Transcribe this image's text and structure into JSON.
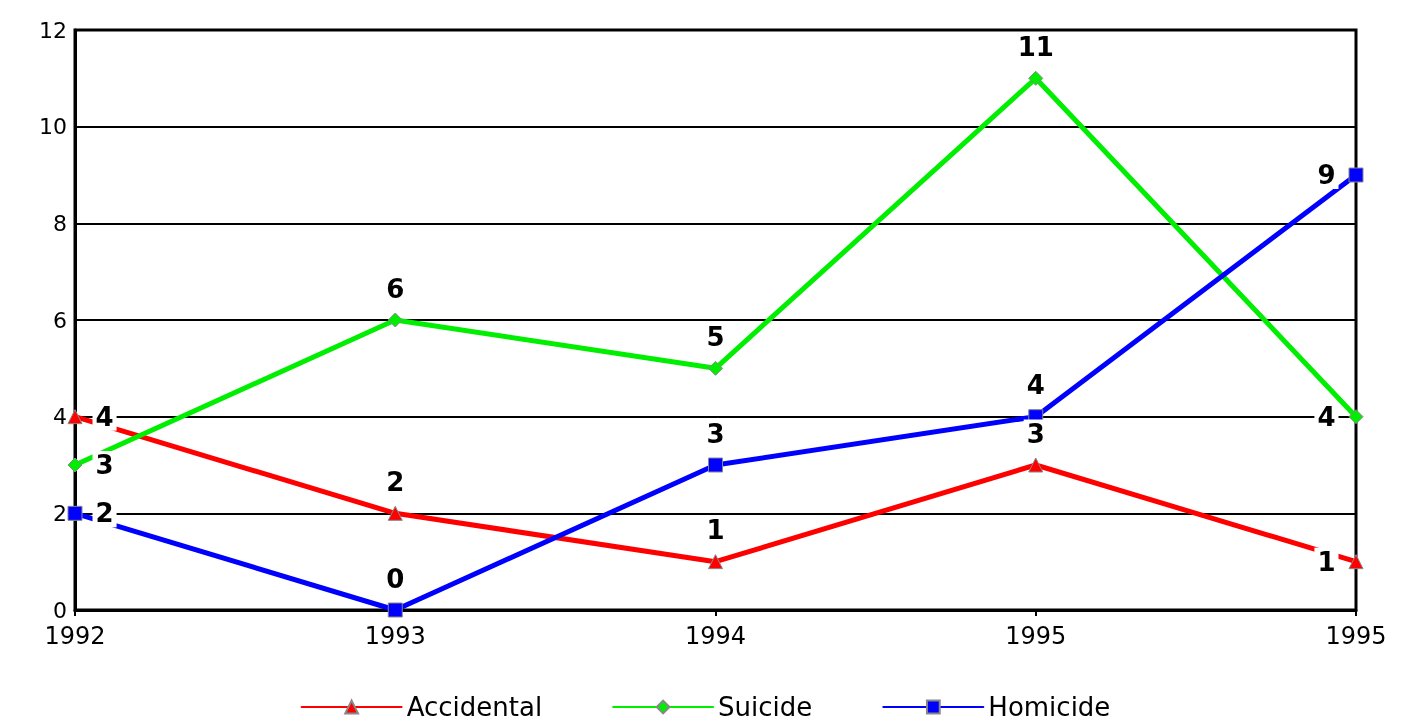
{
  "chart_data": {
    "type": "line",
    "categories": [
      "1992",
      "1993",
      "1994",
      "1995",
      "1995"
    ],
    "series": [
      {
        "name": "Accidental",
        "color": "#ff0000",
        "marker": "triangle",
        "values": [
          4,
          2,
          1,
          3,
          1
        ]
      },
      {
        "name": "Suicide",
        "color": "#00ee00",
        "marker": "diamond",
        "values": [
          3,
          6,
          5,
          11,
          4
        ]
      },
      {
        "name": "Homicide",
        "color": "#0000ff",
        "marker": "square",
        "values": [
          2,
          0,
          3,
          4,
          9
        ]
      }
    ],
    "ylim": [
      0,
      12
    ],
    "yticks": [
      0,
      2,
      4,
      6,
      8,
      10,
      12
    ],
    "grid": "y",
    "legend": "bottom",
    "data_labels": true,
    "line_style": "solid"
  }
}
